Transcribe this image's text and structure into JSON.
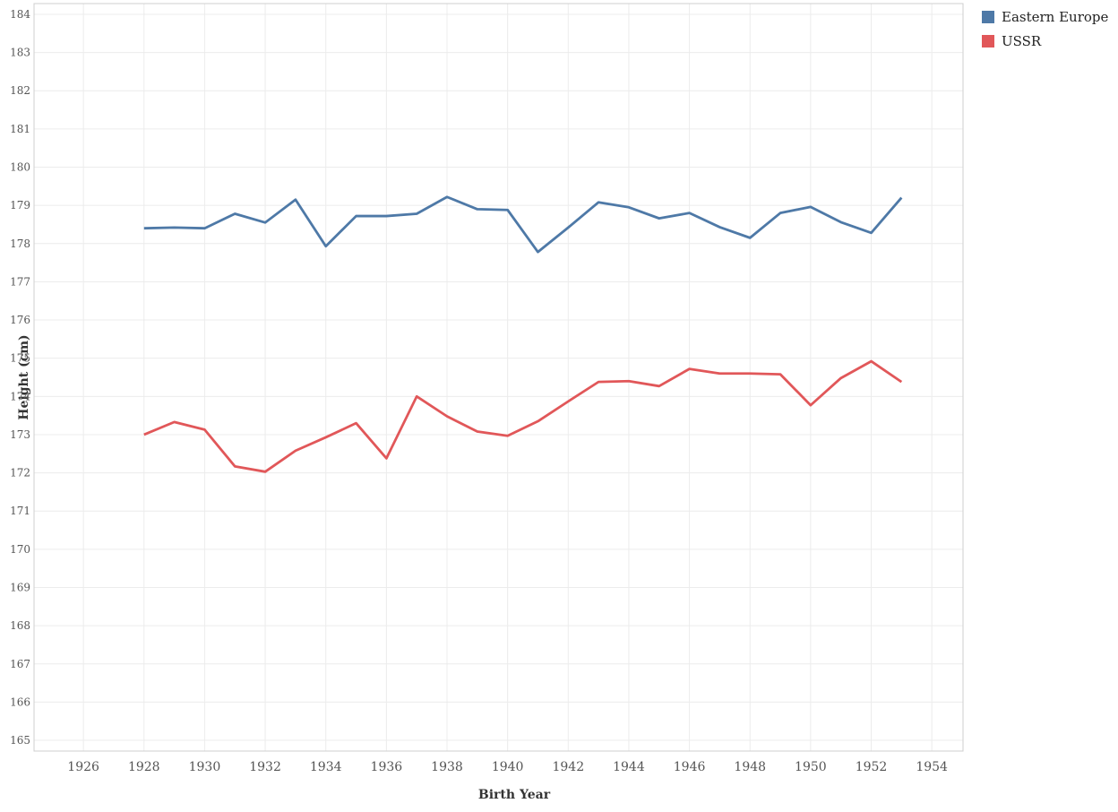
{
  "chart_data": {
    "type": "line",
    "x_label": "Birth Year",
    "y_label": "Height (cm)",
    "x": [
      1928,
      1929,
      1930,
      1931,
      1932,
      1933,
      1934,
      1935,
      1936,
      1937,
      1938,
      1939,
      1940,
      1941,
      1942,
      1943,
      1944,
      1945,
      1946,
      1947,
      1948,
      1949,
      1950,
      1951,
      1952,
      1953
    ],
    "series": [
      {
        "name": "Eastern Europe",
        "color": "#4e79a7",
        "values": [
          178.4,
          178.42,
          178.4,
          178.78,
          178.55,
          179.15,
          177.93,
          178.72,
          178.72,
          178.78,
          179.22,
          178.9,
          178.88,
          177.78,
          178.42,
          179.08,
          178.95,
          178.66,
          178.8,
          178.43,
          178.15,
          178.8,
          178.96,
          178.56,
          178.28,
          179.2
        ]
      },
      {
        "name": "USSR",
        "color": "#e15759",
        "values": [
          173.0,
          173.33,
          173.13,
          172.17,
          172.03,
          172.58,
          172.93,
          173.3,
          172.38,
          174.0,
          173.48,
          173.08,
          172.97,
          173.35,
          173.87,
          174.38,
          174.4,
          174.27,
          174.72,
          174.6,
          174.6,
          174.58,
          173.77,
          174.48,
          174.92,
          174.38
        ]
      }
    ],
    "xlim": [
      1924.37,
      1955.03
    ],
    "ylim": [
      164.72,
      184.28
    ],
    "xticks": [
      1926,
      1928,
      1930,
      1932,
      1934,
      1936,
      1938,
      1940,
      1942,
      1944,
      1946,
      1948,
      1950,
      1952,
      1954
    ],
    "yticks": [
      165,
      166,
      167,
      168,
      169,
      170,
      171,
      172,
      173,
      174,
      175,
      176,
      177,
      178,
      179,
      180,
      181,
      182,
      183,
      184
    ],
    "grid": true
  }
}
